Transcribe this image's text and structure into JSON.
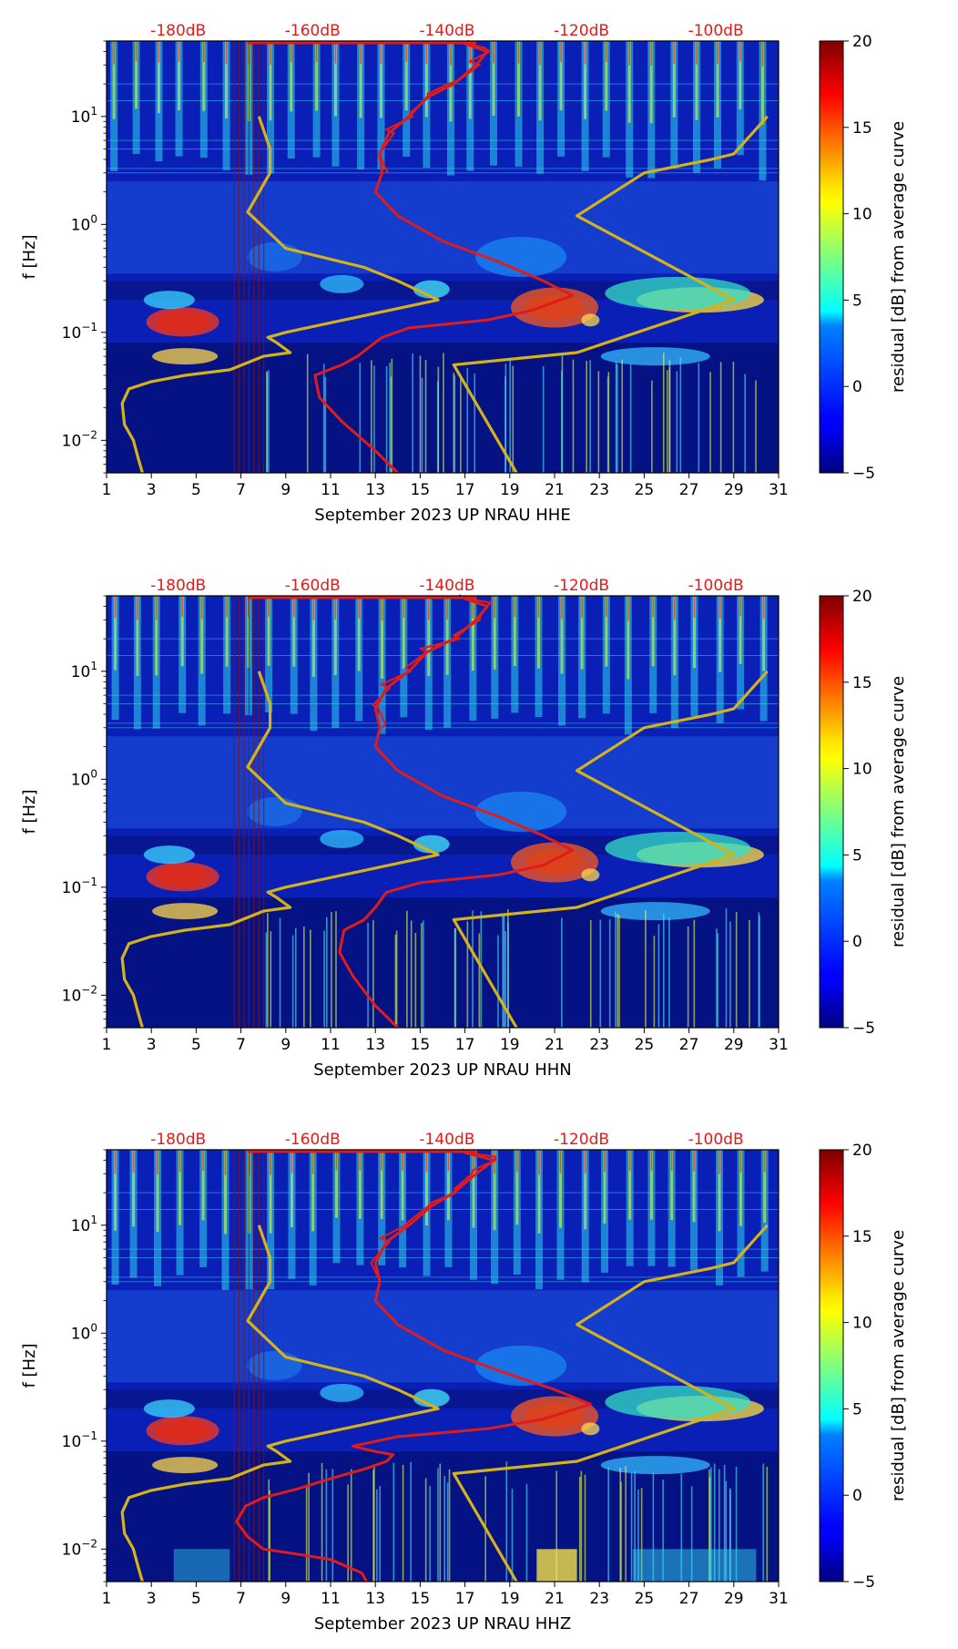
{
  "chart_data": [
    {
      "type": "heatmap",
      "xlabel": "September 2023 UP NRAU  HHE",
      "ylabel": "f [Hz]",
      "x_ticks": [
        "1",
        "3",
        "5",
        "7",
        "9",
        "11",
        "13",
        "15",
        "17",
        "19",
        "21",
        "23",
        "25",
        "27",
        "29",
        "31"
      ],
      "y_ticks": [
        "10^{-2}",
        "10^{-1}",
        "10^{0}",
        "10^{1}"
      ],
      "xlim": [
        1,
        31
      ],
      "ylim_hz": [
        0.005,
        50
      ],
      "colorbar": {
        "label": "residual [dB] from average curve",
        "ticks": [
          "−5",
          "0",
          "5",
          "10",
          "15",
          "20"
        ],
        "range": [
          -5,
          20
        ]
      },
      "db_labels": [
        "-180dB",
        "-160dB",
        "-140dB",
        "-120dB",
        "-100dB"
      ],
      "series": [
        {
          "name": "noise-model",
          "color": "#d4b21a",
          "points": [
            [
              2.6,
              0.005
            ],
            [
              2.4,
              0.007
            ],
            [
              2.2,
              0.01
            ],
            [
              1.8,
              0.014
            ],
            [
              1.7,
              0.022
            ],
            [
              2.0,
              0.03
            ],
            [
              3.0,
              0.035
            ],
            [
              4.5,
              0.04
            ],
            [
              6.5,
              0.045
            ],
            [
              8.0,
              0.06
            ],
            [
              9.2,
              0.065
            ],
            [
              8.6,
              0.08
            ],
            [
              8.2,
              0.09
            ],
            [
              9.0,
              0.1
            ],
            [
              15.8,
              0.2
            ],
            [
              14.0,
              0.3
            ],
            [
              12.5,
              0.4
            ],
            [
              9.0,
              0.6
            ],
            [
              7.3,
              1.3
            ],
            [
              8.3,
              3.0
            ],
            [
              8.3,
              5.0
            ],
            [
              7.8,
              10.0
            ]
          ]
        },
        {
          "name": "noise-model",
          "color": "#d4b21a",
          "points": [
            [
              19.3,
              0.005
            ],
            [
              16.5,
              0.05
            ],
            [
              22.0,
              0.065
            ],
            [
              29.0,
              0.2
            ],
            [
              22.0,
              1.2
            ],
            [
              25.0,
              3.0
            ],
            [
              28.0,
              4.0
            ],
            [
              29.0,
              4.5
            ],
            [
              30.5,
              10.0
            ]
          ]
        },
        {
          "name": "average-psd",
          "color": "#e01b1b",
          "points": [
            [
              14.0,
              0.005
            ],
            [
              13.0,
              0.008
            ],
            [
              11.5,
              0.015
            ],
            [
              10.5,
              0.025
            ],
            [
              10.3,
              0.04
            ],
            [
              11.5,
              0.05
            ],
            [
              12.2,
              0.06
            ],
            [
              12.8,
              0.075
            ],
            [
              13.3,
              0.09
            ],
            [
              14.5,
              0.11
            ],
            [
              18.0,
              0.13
            ],
            [
              20.0,
              0.16
            ],
            [
              21.8,
              0.22
            ],
            [
              20.5,
              0.3
            ],
            [
              18.5,
              0.45
            ],
            [
              16.0,
              0.7
            ],
            [
              14.0,
              1.2
            ],
            [
              13.0,
              2.0
            ],
            [
              13.3,
              3.0
            ],
            [
              13.2,
              4.5
            ],
            [
              13.6,
              7.0
            ],
            [
              14.5,
              10.0
            ],
            [
              15.3,
              15.0
            ],
            [
              16.5,
              20.0
            ],
            [
              17.5,
              30.0
            ],
            [
              18.0,
              40.0
            ],
            [
              17.0,
              47.0
            ]
          ]
        }
      ]
    },
    {
      "type": "heatmap",
      "xlabel": "September 2023 UP NRAU  HHN",
      "ylabel": "f [Hz]",
      "x_ticks": [
        "1",
        "3",
        "5",
        "7",
        "9",
        "11",
        "13",
        "15",
        "17",
        "19",
        "21",
        "23",
        "25",
        "27",
        "29",
        "31"
      ],
      "y_ticks": [
        "10^{-2}",
        "10^{-1}",
        "10^{0}",
        "10^{1}"
      ],
      "xlim": [
        1,
        31
      ],
      "ylim_hz": [
        0.005,
        50
      ],
      "colorbar": {
        "label": "residual [dB] from average curve",
        "ticks": [
          "−5",
          "0",
          "5",
          "10",
          "15",
          "20"
        ],
        "range": [
          -5,
          20
        ]
      },
      "db_labels": [
        "-180dB",
        "-160dB",
        "-140dB",
        "-120dB",
        "-100dB"
      ],
      "series": [
        {
          "name": "noise-model",
          "color": "#d4b21a",
          "points": [
            [
              2.6,
              0.005
            ],
            [
              2.4,
              0.007
            ],
            [
              2.2,
              0.01
            ],
            [
              1.8,
              0.014
            ],
            [
              1.7,
              0.022
            ],
            [
              2.0,
              0.03
            ],
            [
              3.0,
              0.035
            ],
            [
              4.5,
              0.04
            ],
            [
              6.5,
              0.045
            ],
            [
              8.0,
              0.06
            ],
            [
              9.2,
              0.065
            ],
            [
              8.6,
              0.08
            ],
            [
              8.2,
              0.09
            ],
            [
              9.0,
              0.1
            ],
            [
              15.8,
              0.2
            ],
            [
              14.0,
              0.3
            ],
            [
              12.5,
              0.4
            ],
            [
              9.0,
              0.6
            ],
            [
              7.3,
              1.3
            ],
            [
              8.3,
              3.0
            ],
            [
              8.3,
              5.0
            ],
            [
              7.8,
              10.0
            ]
          ]
        },
        {
          "name": "noise-model",
          "color": "#d4b21a",
          "points": [
            [
              19.3,
              0.005
            ],
            [
              16.5,
              0.05
            ],
            [
              22.0,
              0.065
            ],
            [
              29.0,
              0.2
            ],
            [
              22.0,
              1.2
            ],
            [
              25.0,
              3.0
            ],
            [
              28.0,
              4.0
            ],
            [
              29.0,
              4.5
            ],
            [
              30.5,
              10.0
            ]
          ]
        },
        {
          "name": "average-psd",
          "color": "#e01b1b",
          "points": [
            [
              14.0,
              0.005
            ],
            [
              13.0,
              0.008
            ],
            [
              12.0,
              0.015
            ],
            [
              11.4,
              0.025
            ],
            [
              11.6,
              0.04
            ],
            [
              12.5,
              0.05
            ],
            [
              13.0,
              0.065
            ],
            [
              13.5,
              0.09
            ],
            [
              15.0,
              0.11
            ],
            [
              18.5,
              0.13
            ],
            [
              20.5,
              0.16
            ],
            [
              21.8,
              0.22
            ],
            [
              20.5,
              0.3
            ],
            [
              18.5,
              0.45
            ],
            [
              16.0,
              0.7
            ],
            [
              14.0,
              1.2
            ],
            [
              13.0,
              2.0
            ],
            [
              13.2,
              3.0
            ],
            [
              13.0,
              4.5
            ],
            [
              13.5,
              7.0
            ],
            [
              14.5,
              10.0
            ],
            [
              15.3,
              15.0
            ],
            [
              16.5,
              20.0
            ],
            [
              17.5,
              30.0
            ],
            [
              18.0,
              40.0
            ],
            [
              17.0,
              47.0
            ]
          ]
        }
      ]
    },
    {
      "type": "heatmap",
      "xlabel": "September 2023 UP NRAU  HHZ",
      "ylabel": "f [Hz]",
      "x_ticks": [
        "1",
        "3",
        "5",
        "7",
        "9",
        "11",
        "13",
        "15",
        "17",
        "19",
        "21",
        "23",
        "25",
        "27",
        "29",
        "31"
      ],
      "y_ticks": [
        "10^{-2}",
        "10^{-1}",
        "10^{0}",
        "10^{1}"
      ],
      "xlim": [
        1,
        31
      ],
      "ylim_hz": [
        0.005,
        50
      ],
      "colorbar": {
        "label": "residual [dB] from average curve",
        "ticks": [
          "−5",
          "0",
          "5",
          "10",
          "15",
          "20"
        ],
        "range": [
          -5,
          20
        ]
      },
      "db_labels": [
        "-180dB",
        "-160dB",
        "-140dB",
        "-120dB",
        "-100dB"
      ],
      "series": [
        {
          "name": "noise-model",
          "color": "#d4b21a",
          "points": [
            [
              2.6,
              0.005
            ],
            [
              2.4,
              0.007
            ],
            [
              2.2,
              0.01
            ],
            [
              1.8,
              0.014
            ],
            [
              1.7,
              0.022
            ],
            [
              2.0,
              0.03
            ],
            [
              3.0,
              0.035
            ],
            [
              4.5,
              0.04
            ],
            [
              6.5,
              0.045
            ],
            [
              8.0,
              0.06
            ],
            [
              9.2,
              0.065
            ],
            [
              8.6,
              0.08
            ],
            [
              8.2,
              0.09
            ],
            [
              9.0,
              0.1
            ],
            [
              15.8,
              0.2
            ],
            [
              14.0,
              0.3
            ],
            [
              12.5,
              0.4
            ],
            [
              9.0,
              0.6
            ],
            [
              7.3,
              1.3
            ],
            [
              8.3,
              3.0
            ],
            [
              8.3,
              5.0
            ],
            [
              7.8,
              10.0
            ]
          ]
        },
        {
          "name": "noise-model",
          "color": "#d4b21a",
          "points": [
            [
              19.3,
              0.005
            ],
            [
              16.5,
              0.05
            ],
            [
              22.0,
              0.065
            ],
            [
              29.0,
              0.2
            ],
            [
              22.0,
              1.2
            ],
            [
              25.0,
              3.0
            ],
            [
              28.0,
              4.0
            ],
            [
              29.0,
              4.5
            ],
            [
              30.5,
              10.0
            ]
          ]
        },
        {
          "name": "average-psd",
          "color": "#e01b1b",
          "points": [
            [
              12.6,
              0.005
            ],
            [
              12.4,
              0.006
            ],
            [
              11.0,
              0.008
            ],
            [
              9.5,
              0.009
            ],
            [
              8.0,
              0.01
            ],
            [
              7.3,
              0.013
            ],
            [
              6.8,
              0.018
            ],
            [
              7.2,
              0.025
            ],
            [
              8.0,
              0.03
            ],
            [
              9.5,
              0.036
            ],
            [
              11.0,
              0.045
            ],
            [
              12.5,
              0.055
            ],
            [
              13.5,
              0.065
            ],
            [
              13.8,
              0.075
            ],
            [
              13.0,
              0.08
            ],
            [
              12.0,
              0.09
            ],
            [
              14.0,
              0.11
            ],
            [
              18.0,
              0.13
            ],
            [
              20.5,
              0.16
            ],
            [
              22.6,
              0.22
            ],
            [
              21.0,
              0.3
            ],
            [
              18.5,
              0.45
            ],
            [
              16.0,
              0.7
            ],
            [
              14.0,
              1.2
            ],
            [
              13.0,
              2.0
            ],
            [
              13.2,
              3.0
            ],
            [
              13.0,
              4.5
            ],
            [
              13.5,
              7.0
            ],
            [
              14.5,
              10.0
            ],
            [
              15.5,
              15.0
            ],
            [
              16.5,
              20.0
            ],
            [
              17.5,
              30.0
            ],
            [
              18.3,
              40.0
            ],
            [
              17.0,
              47.0
            ]
          ]
        }
      ]
    }
  ]
}
